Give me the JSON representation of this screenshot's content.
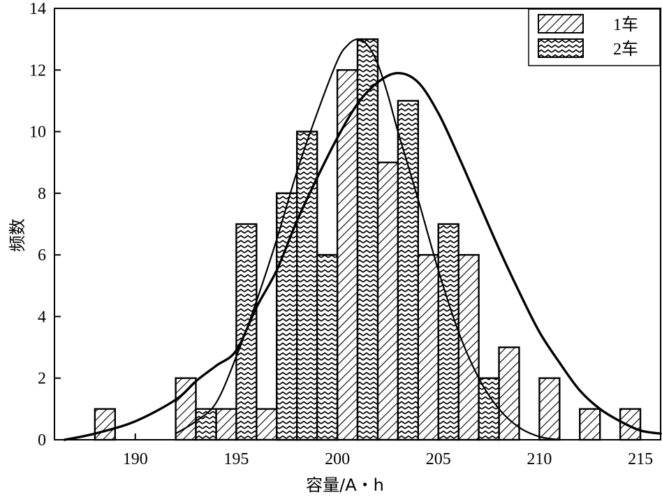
{
  "chart_data": {
    "type": "bar",
    "xlabel": "容量/A・h",
    "ylabel": "频数",
    "xlim": [
      186,
      216
    ],
    "ylim": [
      0,
      14
    ],
    "x_ticks": [
      190,
      195,
      200,
      205,
      210,
      215
    ],
    "y_ticks": [
      0,
      2,
      4,
      6,
      8,
      10,
      12,
      14
    ],
    "bin_width": 1,
    "grid": false,
    "legend_position": "top-right",
    "series": [
      {
        "name": "1车",
        "pattern": "diagonal-hatch",
        "x": [
          188.5,
          192.5,
          194.5,
          196.5,
          197.5,
          198.5,
          199.5,
          200.5,
          202.5,
          204.5,
          206.5,
          208.5,
          210.5,
          212.5,
          214.5
        ],
        "values": [
          1,
          2,
          1,
          1,
          8,
          10,
          6,
          12,
          9,
          6,
          6,
          3,
          2,
          1,
          1
        ]
      },
      {
        "name": "2车",
        "pattern": "zigzag",
        "x": [
          193.5,
          195.5,
          197.5,
          198.5,
          199.5,
          201.5,
          203.5,
          205.5,
          207.5
        ],
        "values": [
          1,
          7,
          8,
          10,
          6,
          13,
          11,
          7,
          2
        ]
      }
    ],
    "fit_curves": [
      {
        "stroke_weight": "thin",
        "points": [
          [
            192,
            0.2
          ],
          [
            193,
            0.6
          ],
          [
            194,
            1.2
          ],
          [
            195,
            2.7
          ],
          [
            196,
            4.5
          ],
          [
            197,
            6.5
          ],
          [
            198,
            8.7
          ],
          [
            199,
            10.6
          ],
          [
            200,
            12.3
          ],
          [
            200.5,
            12.8
          ],
          [
            201,
            13.0
          ],
          [
            201.5,
            12.8
          ],
          [
            202,
            12.2
          ],
          [
            202.5,
            11.2
          ],
          [
            203,
            10.0
          ],
          [
            204,
            7.8
          ],
          [
            205,
            5.5
          ],
          [
            206,
            3.5
          ],
          [
            207,
            2.0
          ],
          [
            208,
            1.0
          ],
          [
            209,
            0.4
          ],
          [
            210,
            0.1
          ],
          [
            211,
            0.0
          ]
        ]
      },
      {
        "stroke_weight": "thick",
        "points": [
          [
            186.5,
            0.0
          ],
          [
            188,
            0.2
          ],
          [
            190,
            0.6
          ],
          [
            192,
            1.3
          ],
          [
            193,
            1.9
          ],
          [
            194,
            2.4
          ],
          [
            195,
            2.9
          ],
          [
            196,
            4.3
          ],
          [
            197,
            5.5
          ],
          [
            198,
            7.1
          ],
          [
            199,
            8.5
          ],
          [
            200,
            9.8
          ],
          [
            201,
            10.9
          ],
          [
            202,
            11.6
          ],
          [
            203,
            11.9
          ],
          [
            204,
            11.6
          ],
          [
            205,
            10.6
          ],
          [
            206,
            9.2
          ],
          [
            207,
            7.7
          ],
          [
            208,
            6.2
          ],
          [
            209,
            4.8
          ],
          [
            210,
            3.5
          ],
          [
            211,
            2.5
          ],
          [
            212,
            1.6
          ],
          [
            213,
            1.0
          ],
          [
            214,
            0.6
          ],
          [
            215,
            0.3
          ],
          [
            216,
            0.2
          ]
        ]
      }
    ]
  }
}
